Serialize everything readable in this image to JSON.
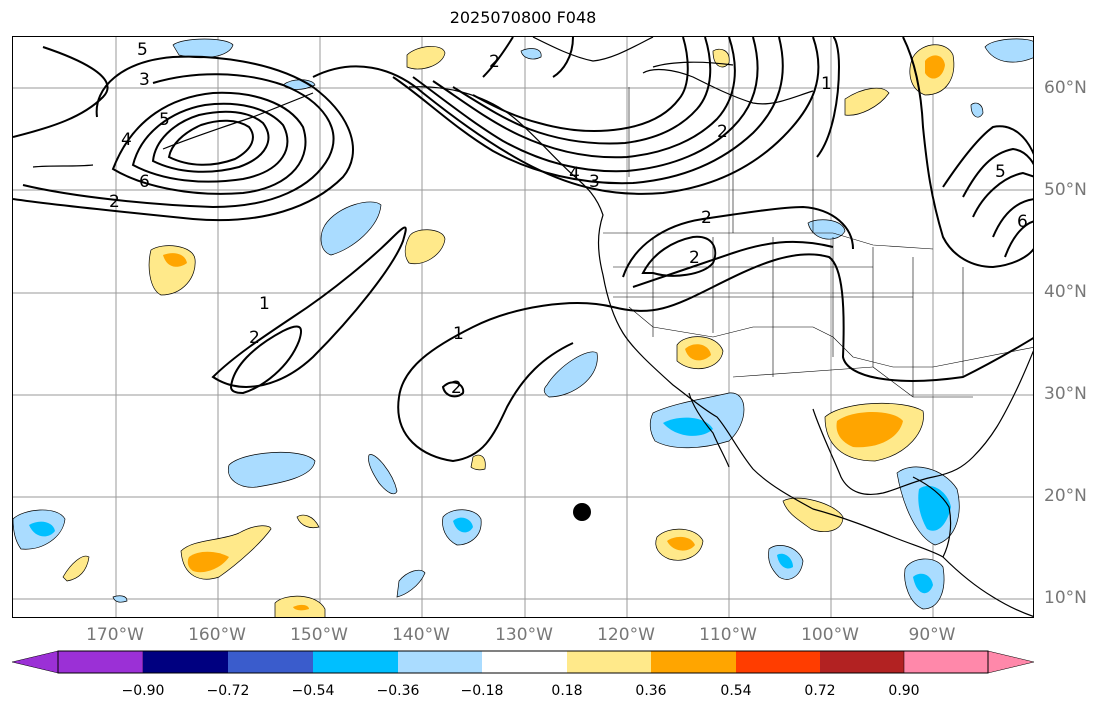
{
  "title": "2025070800 F048",
  "lon_labels": [
    "170°W",
    "160°W",
    "150°W",
    "140°W",
    "130°W",
    "120°W",
    "110°W",
    "100°W",
    "90°W"
  ],
  "lat_labels": [
    "60°N",
    "50°N",
    "40°N",
    "30°N",
    "20°N",
    "10°N"
  ],
  "contour_labels": [
    "5",
    "3",
    "4",
    "5",
    "6",
    "2",
    "2",
    "1",
    "1",
    "2",
    "2",
    "1",
    "2",
    "3",
    "4",
    "5",
    "6",
    "2",
    "2",
    "1"
  ],
  "colorbar": {
    "ticks": [
      "−0.90",
      "−0.72",
      "−0.54",
      "−0.36",
      "−0.18",
      "0.18",
      "0.36",
      "0.54",
      "0.72",
      "0.90"
    ],
    "colors": [
      "#9b30d6",
      "#000080",
      "#3a5ccc",
      "#00bfff",
      "#aadcff",
      "#ffffff",
      "#ffe98a",
      "#ffa500",
      "#ff3d00",
      "#b22222",
      "#ff88aa"
    ]
  },
  "palette": {
    "light_blue": "#aadcff",
    "blue": "#00bfff",
    "light_yellow": "#ffe98a",
    "orange": "#ffa500"
  }
}
